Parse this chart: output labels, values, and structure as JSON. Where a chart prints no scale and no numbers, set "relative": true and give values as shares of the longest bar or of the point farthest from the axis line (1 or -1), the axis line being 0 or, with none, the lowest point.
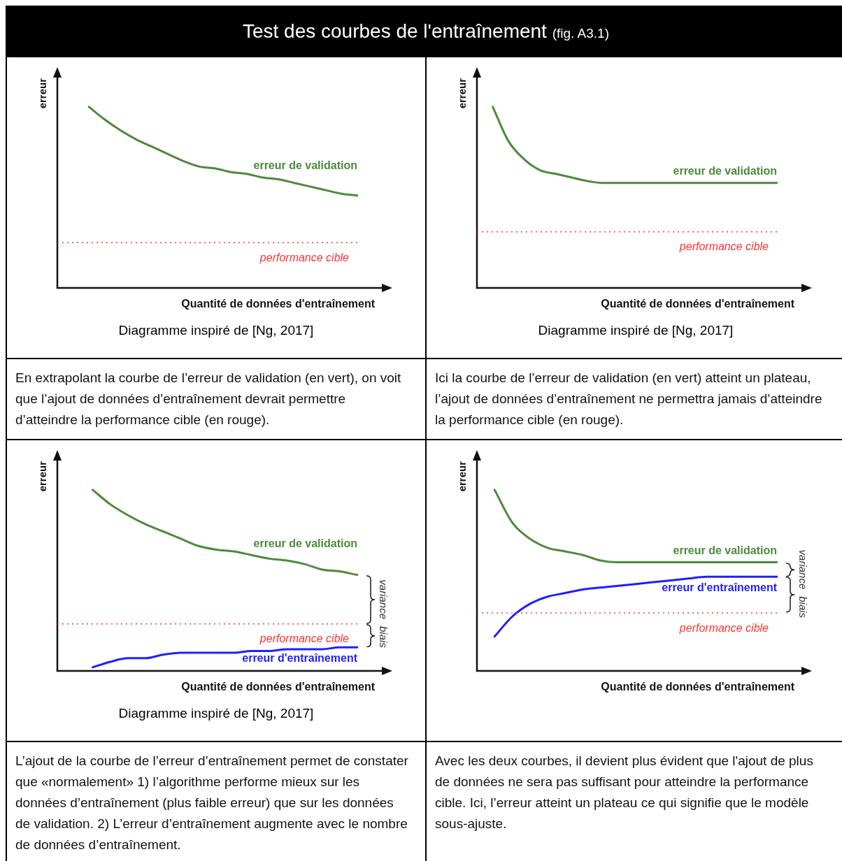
{
  "chart_data": [
    {
      "type": "other",
      "title": "Test des courbes de l'entraînement",
      "subtitle": "(fig. A3.1)"
    },
    {
      "type": "line",
      "relative": true,
      "ylabel": "erreur",
      "xlabel": "Quantité de données d'entraînement",
      "categories": [
        null,
        null,
        null,
        null,
        null,
        null,
        null,
        null,
        null,
        null,
        null,
        null,
        null,
        null,
        null,
        null,
        null,
        null,
        null,
        null
      ],
      "series": [
        {
          "name": "erreur de validation",
          "color": "#4b8b3b",
          "values": [
            null,
            null,
            1,
            0.93,
            0.87,
            0.82,
            0.78,
            0.74,
            0.7,
            0.67,
            0.66,
            0.64,
            0.63,
            0.61,
            0.6,
            0.58,
            0.56,
            0.54,
            0.52,
            0.51
          ]
        }
      ],
      "ref_lines": [
        {
          "axis": "y",
          "value": 0.25,
          "label": "performance cible",
          "color": "#ff3333",
          "line_style": "dotted"
        }
      ],
      "annotations": [
        "Diagramme inspiré de [Ng, 2017]",
        "En extrapolant la courbe de l’erreur de validation (en vert), on voit que l’ajout de données d’entraînement devrait permettre d’atteindre la performance cible (en rouge)."
      ]
    },
    {
      "type": "line",
      "relative": true,
      "ylabel": "erreur",
      "xlabel": "Quantité de données d'entraînement",
      "categories": [
        null,
        null,
        null,
        null,
        null,
        null,
        null,
        null,
        null,
        null,
        null,
        null,
        null,
        null,
        null,
        null,
        null,
        null,
        null,
        null
      ],
      "series": [
        {
          "name": "erreur de validation",
          "color": "#4b8b3b",
          "values": [
            null,
            1,
            0.81,
            0.71,
            0.65,
            0.63,
            0.61,
            0.59,
            0.58,
            0.58,
            0.58,
            0.58,
            0.58,
            0.58,
            0.58,
            0.58,
            0.58,
            0.58,
            0.58,
            0.58
          ]
        }
      ],
      "ref_lines": [
        {
          "axis": "y",
          "value": 0.31,
          "label": "performance cible",
          "color": "#ff3333",
          "line_style": "dotted"
        }
      ],
      "annotations": [
        "Diagramme inspiré de [Ng, 2017]",
        "Ici la courbe de l’erreur de validation (en vert) atteint un plateau, l’ajout de données d’entraînement ne permettra jamais d’atteindre la performance cible (en rouge)."
      ]
    },
    {
      "type": "line",
      "relative": true,
      "ylabel": "erreur",
      "xlabel": "Quantité de données d'entraînement",
      "categories": [
        null,
        null,
        null,
        null,
        null,
        null,
        null,
        null,
        null,
        null,
        null,
        null,
        null,
        null,
        null,
        null,
        null,
        null
      ],
      "series": [
        {
          "name": "erreur de validation",
          "color": "#4b8b3b",
          "values": [
            null,
            null,
            1,
            0.92,
            0.86,
            0.81,
            0.77,
            0.73,
            0.69,
            0.67,
            0.66,
            0.64,
            0.62,
            0.61,
            0.59,
            0.56,
            0.55,
            0.53
          ]
        },
        {
          "name": "erreur d'entraînement",
          "color": "#1f1fff",
          "values": [
            null,
            null,
            0.02,
            0.05,
            0.07,
            0.07,
            0.09,
            0.1,
            0.1,
            0.1,
            0.1,
            0.11,
            0.11,
            0.12,
            0.12,
            0.12,
            0.13,
            0.13
          ]
        }
      ],
      "ref_lines": [
        {
          "axis": "y",
          "value": 0.26,
          "label": "performance cible",
          "color": "#ff3333",
          "line_style": "dotted"
        }
      ],
      "annotations": [
        "variance",
        "biais",
        "Diagramme inspiré de [Ng, 2017]",
        "L’ajout de la courbe de l’erreur d’entraînement permet de constater que «normalement» 1) l’algorithme performe mieux sur les données d’entraînement (plus faible erreur) que sur les données de validation. 2) L’erreur d’entraînement augmente avec le nombre de données d’entraînement."
      ]
    },
    {
      "type": "line",
      "relative": true,
      "ylabel": "erreur",
      "xlabel": "Quantité de données d'entraînement",
      "categories": [
        null,
        null,
        null,
        null,
        null,
        null,
        null,
        null,
        null,
        null,
        null,
        null,
        null,
        null,
        null,
        null,
        null,
        null
      ],
      "series": [
        {
          "name": "erreur de validation",
          "color": "#4b8b3b",
          "values": [
            null,
            1,
            0.82,
            0.73,
            0.68,
            0.66,
            0.64,
            0.61,
            0.6,
            0.6,
            0.6,
            0.6,
            0.6,
            0.6,
            0.6,
            0.6,
            0.6,
            0.6
          ]
        },
        {
          "name": "erreur d'entraînement",
          "color": "#1f1fff",
          "values": [
            null,
            0.19,
            0.3,
            0.37,
            0.41,
            0.43,
            0.45,
            0.46,
            0.47,
            0.48,
            0.49,
            0.5,
            0.51,
            0.52,
            0.52,
            0.52,
            0.52,
            0.52
          ]
        }
      ],
      "ref_lines": [
        {
          "axis": "y",
          "value": 0.32,
          "label": "performance cible",
          "color": "#ff3333",
          "line_style": "dotted"
        }
      ],
      "annotations": [
        "variance",
        "biais",
        "Avec les deux courbes, il devient plus évident que l'ajout de plus de données ne sera pas suffisant pour atteindre la performance cible. Ici, l’erreur atteint un plateau ce qui signifie que le modèle sous-ajuste."
      ]
    }
  ]
}
